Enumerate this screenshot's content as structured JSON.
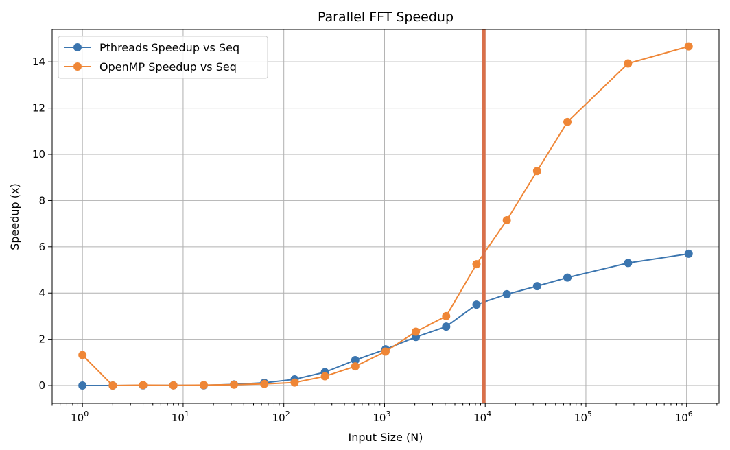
{
  "chart_data": {
    "type": "line",
    "title": "Parallel FFT Speedup",
    "xlabel": "Input Size (N)",
    "ylabel": "Speedup (x)",
    "xscale": "log",
    "xlim": [
      0.5,
      2100000
    ],
    "ylim": [
      -0.77,
      15.4
    ],
    "grid": true,
    "legend_placement": "top-left",
    "x_ticks": [
      1,
      10,
      100,
      1000,
      10000,
      100000,
      1000000
    ],
    "x_tick_labels": [
      [
        "10",
        "0"
      ],
      [
        "10",
        "1"
      ],
      [
        "10",
        "2"
      ],
      [
        "10",
        "3"
      ],
      [
        "10",
        "4"
      ],
      [
        "10",
        "5"
      ],
      [
        "10",
        "6"
      ]
    ],
    "y_ticks": [
      0,
      2,
      4,
      6,
      8,
      10,
      12,
      14
    ],
    "x": [
      1,
      2,
      4,
      8,
      16,
      32,
      64,
      128,
      256,
      512,
      1024,
      2048,
      4096,
      8192,
      16384,
      32768,
      65536,
      262144,
      1048576
    ],
    "series": [
      {
        "name": "Pthreads Speedup vs Seq",
        "color": "#3b75af",
        "values": [
          0,
          0,
          0.01,
          0.01,
          0.01,
          0.05,
          0.12,
          0.27,
          0.58,
          1.1,
          1.57,
          2.1,
          2.55,
          3.5,
          3.95,
          4.3,
          4.67,
          5.3,
          5.7
        ]
      },
      {
        "name": "OpenMP Speedup vs Seq",
        "color": "#ef8636",
        "values": [
          1.32,
          0,
          0.02,
          0.01,
          0.02,
          0.04,
          0.07,
          0.13,
          0.4,
          0.83,
          1.47,
          2.33,
          3.0,
          5.25,
          7.15,
          9.28,
          11.4,
          13.93,
          14.67
        ]
      }
    ],
    "vertical_line": {
      "x": 10000,
      "color": "#d9704a"
    }
  }
}
